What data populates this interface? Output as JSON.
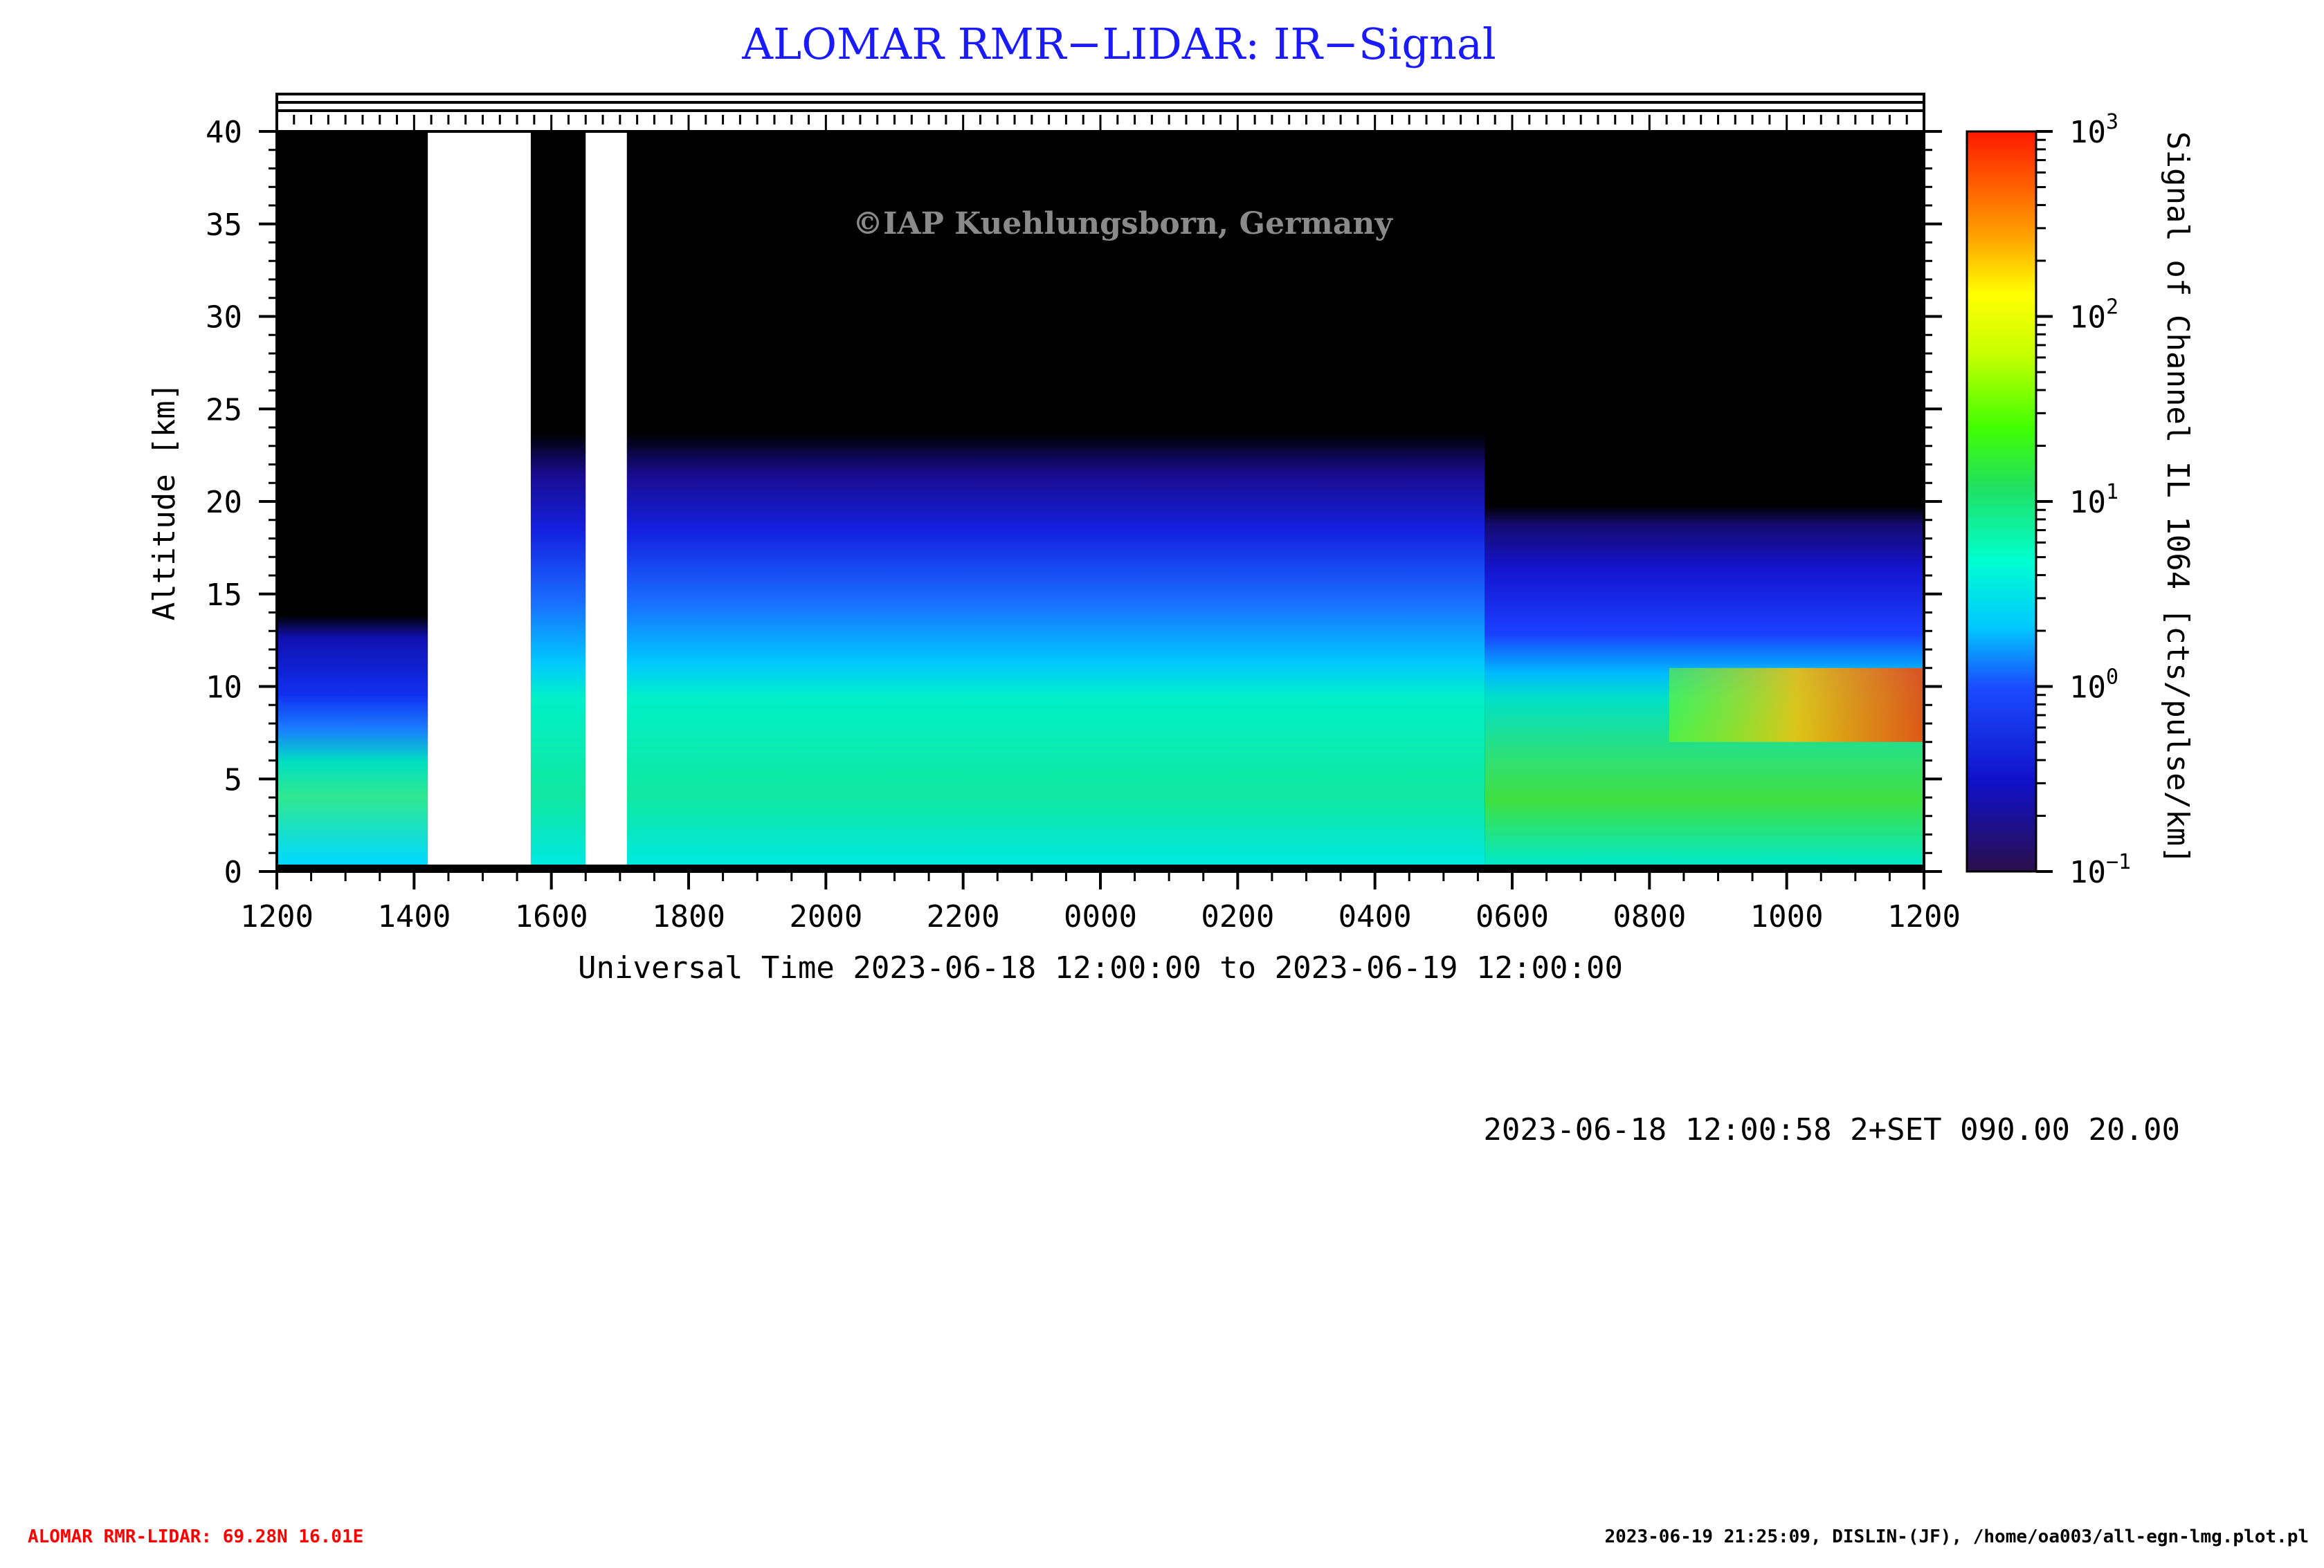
{
  "chart_data": {
    "type": "heatmap",
    "title": "ALOMAR RMR−LIDAR: IR−Signal",
    "watermark": "©IAP Kuehlungsborn, Germany",
    "xlabel": "Universal Time 2023-06-18 12:00:00 to 2023-06-19 12:00:00",
    "ylabel": "Altitude [km]",
    "colorbar_label": "Signal of Channel IL 1064 [cts/pulse/km]",
    "x_ticks": [
      "1200",
      "1400",
      "1600",
      "1800",
      "2000",
      "2200",
      "0000",
      "0200",
      "0400",
      "0600",
      "0800",
      "1000",
      "1200"
    ],
    "x_range_hours": [
      0,
      24
    ],
    "y_ticks": [
      "0",
      "5",
      "10",
      "15",
      "20",
      "25",
      "30",
      "35",
      "40"
    ],
    "ylim": [
      0,
      40
    ],
    "colorbar": {
      "scale": "log",
      "range": [
        0.1,
        1000
      ],
      "ticks": [
        {
          "base": "10",
          "exp": "3",
          "value": 1000
        },
        {
          "base": "10",
          "exp": "2",
          "value": 100
        },
        {
          "base": "10",
          "exp": "1",
          "value": 10
        },
        {
          "base": "10",
          "exp": "0",
          "value": 1
        },
        {
          "base": "10",
          "exp": "−1",
          "value": 0.1
        }
      ]
    },
    "no_data_intervals_hours": [
      [
        2.2,
        3.7
      ],
      [
        4.5,
        5.1
      ]
    ],
    "regions": [
      {
        "t": [
          0,
          2.2
        ],
        "top_km": 17,
        "mid_signal": "0.5",
        "low_signal": "2"
      },
      {
        "t": [
          3.7,
          17.6
        ],
        "top_km": 24,
        "mid_signal": "0.5",
        "low_signal": "3"
      },
      {
        "t": [
          17.6,
          24
        ],
        "top_km": 21,
        "mid_signal": "0.4",
        "low_signal": "5",
        "cloud_km": [
          7,
          11
        ],
        "cloud_signal": "300"
      }
    ]
  },
  "info_line": "2023-06-18 12:00:58 2+SET 090.00 20.00",
  "footer_left": "ALOMAR RMR-LIDAR: 69.28N 16.01E",
  "footer_right": "2023-06-19 21:25:09, DISLIN-(JF), /home/oa003/all-egn-lmg.plot.pl",
  "colors": {
    "title": "#1a1aff",
    "footer_left": "#ff0000",
    "watermark": "#8a8a8a"
  }
}
